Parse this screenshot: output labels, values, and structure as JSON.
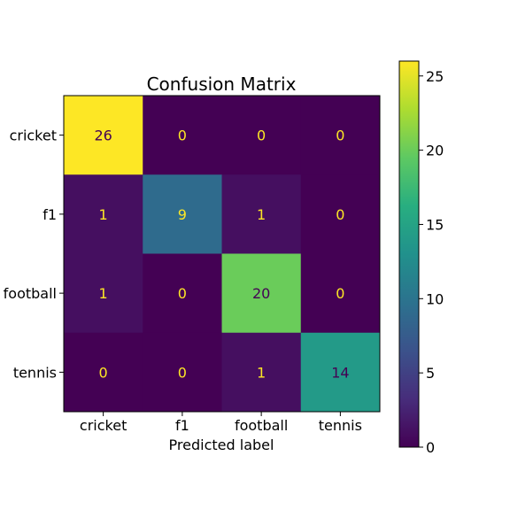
{
  "chart_data": {
    "type": "heatmap",
    "title": "Confusion Matrix",
    "xlabel": "Predicted label",
    "ylabel": "",
    "x_categories": [
      "cricket",
      "f1",
      "football",
      "tennis"
    ],
    "y_categories": [
      "cricket",
      "f1",
      "football",
      "tennis"
    ],
    "values": [
      [
        26,
        0,
        0,
        0
      ],
      [
        1,
        9,
        1,
        0
      ],
      [
        1,
        0,
        20,
        0
      ],
      [
        0,
        0,
        1,
        14
      ]
    ],
    "colormap": "viridis",
    "colorbar": {
      "min": 0,
      "max": 26,
      "ticks": [
        0,
        5,
        10,
        15,
        20,
        25
      ]
    },
    "cell_text_colors": {
      "dark_cells": "#fde725",
      "bright_cells": "#440154"
    }
  }
}
